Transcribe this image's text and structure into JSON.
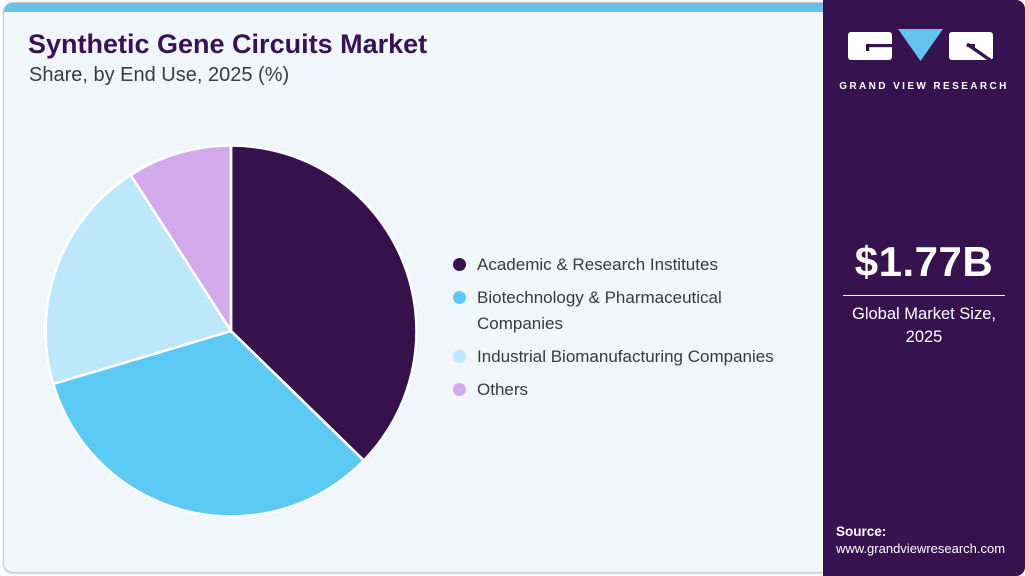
{
  "card": {
    "title": "Synthetic Gene Circuits Market",
    "subtitle": "Share, by End Use, 2025 (%)"
  },
  "chart_data": {
    "type": "pie",
    "title": "Synthetic Gene Circuits Market Share, by End Use, 2025 (%)",
    "labels": [
      "Academic & Research Institutes",
      "Biotechnology & Pharmaceutical Companies",
      "Industrial Biomanufacturing Companies",
      "Others"
    ],
    "values": [
      37.3,
      33.1,
      20.5,
      9.1
    ],
    "colors": [
      "#36114B",
      "#5CC9F4",
      "#BDE7FA",
      "#D2A9EA"
    ],
    "start_angle_deg": 0,
    "direction": "clockwise",
    "legend_position": "right",
    "slice_gap_color": "#FFFFFF"
  },
  "sidebar": {
    "logo_text": "GRAND VIEW RESEARCH",
    "market_size": "$1.77B",
    "market_size_caption": "Global Market Size, 2025",
    "source_label": "Source:",
    "source_url": "www.grandviewresearch.com"
  },
  "theme": {
    "top_bar": "#63C2EE",
    "card_background": "#F0F6FA",
    "panel_background": "#36124E",
    "title_color": "#3A1056",
    "text_color": "#3A3A3A"
  }
}
